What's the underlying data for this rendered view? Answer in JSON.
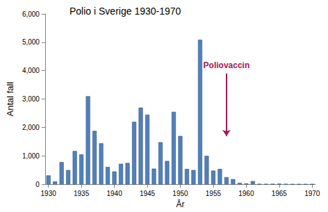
{
  "chart_data": {
    "type": "bar",
    "title": "Polio i Sverige 1930-1970",
    "x_label": "År",
    "y_label": "Antal fall",
    "x": [
      1930,
      1931,
      1932,
      1933,
      1934,
      1935,
      1936,
      1937,
      1938,
      1939,
      1940,
      1941,
      1942,
      1943,
      1944,
      1945,
      1946,
      1947,
      1948,
      1949,
      1950,
      1951,
      1952,
      1953,
      1954,
      1955,
      1956,
      1957,
      1958,
      1959,
      1960,
      1961,
      1962,
      1963,
      1964,
      1965,
      1966,
      1967,
      1968,
      1969,
      1970
    ],
    "values": [
      310,
      100,
      780,
      500,
      1170,
      1050,
      3100,
      1880,
      1440,
      610,
      450,
      720,
      750,
      2200,
      2700,
      2450,
      550,
      1480,
      820,
      2550,
      1700,
      540,
      500,
      5090,
      1000,
      480,
      540,
      250,
      180,
      50,
      30,
      110,
      10,
      5,
      10,
      20,
      10,
      0,
      0,
      0,
      0
    ],
    "color": "#4f81bd",
    "xlim": [
      1929.5,
      1970.5
    ],
    "xticks": [
      1930,
      1935,
      1940,
      1945,
      1950,
      1955,
      1960,
      1965,
      1970
    ],
    "ylim": [
      0,
      6000
    ],
    "yticks": [
      0,
      1000,
      2000,
      3000,
      4000,
      5000,
      6000
    ],
    "grid": false,
    "annotations": [
      {
        "text": "Poliovaccin",
        "x": 1957,
        "y_from": 3900,
        "y_to": 1700,
        "color": "#a3195b"
      }
    ]
  }
}
